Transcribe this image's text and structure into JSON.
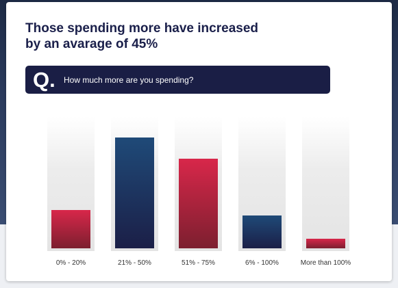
{
  "title": "Those spending more have increased by an avarage of 45%",
  "question": {
    "letter": "Q.",
    "text": "How much more are you spending?"
  },
  "colors": {
    "navy": "#1a1e45",
    "red": "#d8274a"
  },
  "chart_data": {
    "type": "bar",
    "categories": [
      "0% - 20%",
      "21% - 50%",
      "51% - 75%",
      "6% - 100%",
      "More than 100%"
    ],
    "values": [
      29,
      84,
      68,
      25,
      7
    ],
    "bar_colors": [
      "red",
      "navy",
      "red",
      "navy",
      "red"
    ],
    "ylim": [
      0,
      100
    ],
    "grid": false,
    "legend": "none"
  }
}
